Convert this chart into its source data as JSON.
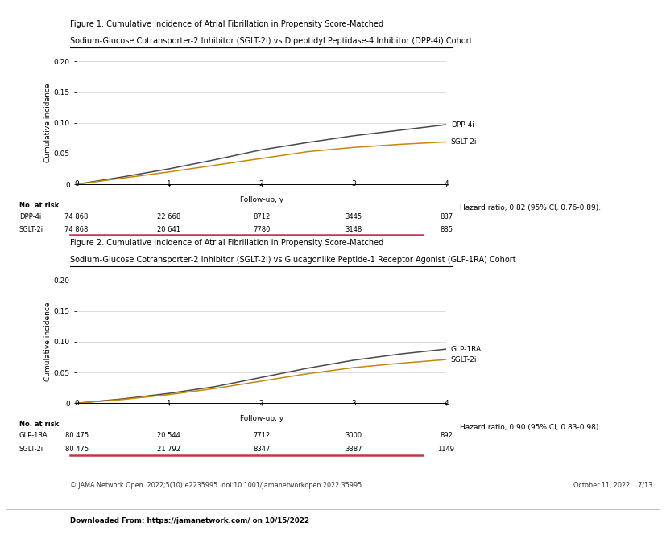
{
  "fig1_title_line1": "Figure 1. Cumulative Incidence of Atrial Fibrillation in Propensity Score-Matched",
  "fig1_title_line2": "Sodium-Glucose Cotransporter-2 Inhibitor (SGLT-2i) vs Dipeptidyl Peptidase-4 Inhibitor (DPP-4i) Cohort",
  "fig2_title_line1": "Figure 2. Cumulative Incidence of Atrial Fibrillation in Propensity Score-Matched",
  "fig2_title_line2": "Sodium-Glucose Cotransporter-2 Inhibitor (SGLT-2i) vs Glucagonlike Peptide-1 Receptor Agonist (GLP-1RA) Cohort",
  "ylabel": "Cumulative incidence",
  "xlabel": "Follow-up, y",
  "fig1_dpp4i_x": [
    0,
    0.5,
    1.0,
    1.5,
    2.0,
    2.5,
    3.0,
    3.5,
    4.0
  ],
  "fig1_dpp4i_y": [
    0,
    0.012,
    0.025,
    0.04,
    0.056,
    0.068,
    0.079,
    0.088,
    0.097
  ],
  "fig1_sglt2i_x": [
    0,
    0.5,
    1.0,
    1.5,
    2.0,
    2.5,
    3.0,
    3.5,
    4.0
  ],
  "fig1_sglt2i_y": [
    0,
    0.01,
    0.02,
    0.031,
    0.042,
    0.053,
    0.06,
    0.065,
    0.069
  ],
  "fig2_glp1ra_x": [
    0,
    0.5,
    1.0,
    1.5,
    2.0,
    2.5,
    3.0,
    3.5,
    4.0
  ],
  "fig2_glp1ra_y": [
    0,
    0.007,
    0.016,
    0.027,
    0.042,
    0.057,
    0.07,
    0.08,
    0.088
  ],
  "fig2_sglt2i_x": [
    0,
    0.5,
    1.0,
    1.5,
    2.0,
    2.5,
    3.0,
    3.5,
    4.0
  ],
  "fig2_sglt2i_y": [
    0,
    0.006,
    0.014,
    0.024,
    0.036,
    0.048,
    0.058,
    0.065,
    0.071
  ],
  "dpp4i_color": "#4A4A4A",
  "sglt2i_color1": "#C8860A",
  "glp1ra_color": "#4A4A4A",
  "sglt2i_color2": "#C8860A",
  "ylim": [
    0,
    0.2
  ],
  "yticks": [
    0,
    0.05,
    0.1,
    0.15,
    0.2
  ],
  "xlim": [
    0,
    4
  ],
  "xticks": [
    0,
    1,
    2,
    3,
    4
  ],
  "fig1_at_risk_header": "No. at risk",
  "fig1_at_risk_row1_label": "DPP-4i",
  "fig1_at_risk_row2_label": "SGLT-2i",
  "fig1_at_risk_dpp4i": [
    "74 868",
    "22 668",
    "8712",
    "3445",
    "887"
  ],
  "fig1_at_risk_sglt2i": [
    "74 868",
    "20 641",
    "7780",
    "3148",
    "885"
  ],
  "fig2_at_risk_header": "No. at risk",
  "fig2_at_risk_row1_label": "GLP-1RA",
  "fig2_at_risk_row2_label": "SGLT-2i",
  "fig2_at_risk_glp1ra": [
    "80 475",
    "20 544",
    "7712",
    "3000",
    "892"
  ],
  "fig2_at_risk_sglt2i": [
    "80 475",
    "21 792",
    "8347",
    "3387",
    "1149"
  ],
  "at_risk_x": [
    0,
    1,
    2,
    3,
    4
  ],
  "fig1_hazard_text": "Hazard ratio, 0.82 (95% CI, 0.76-0.89).",
  "fig2_hazard_text": "Hazard ratio, 0.90 (95% CI, 0.83-0.98).",
  "footer_left": "JAMA Network Open. 2022;5(10):e2235995. doi:10.1001/jamanetworkopen.2022.35995",
  "footer_right": "October 11, 2022    7/13",
  "footer_download": "Downloaded From: https://jamanetwork.com/ on 10/15/2022",
  "separator_color": "#C0384B",
  "fig_title_fontsize": 7.0,
  "axis_label_fontsize": 6.5,
  "tick_fontsize": 6.5,
  "curve_label_fontsize": 6.5,
  "at_risk_fontsize": 6.0,
  "footer_fontsize": 5.8
}
